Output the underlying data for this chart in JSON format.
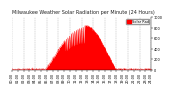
{
  "title": "Milwaukee Weather Solar Radiation per Minute (24 Hours)",
  "bg_color": "#ffffff",
  "plot_bg_color": "#ffffff",
  "line_color": "#ff0000",
  "fill_color": "#ff0000",
  "legend_label": "Solar Rad",
  "legend_color": "#ff0000",
  "grid_color": "#aaaaaa",
  "num_points": 1440,
  "peak_minute": 750,
  "peak_value": 850,
  "sunrise_minute": 340,
  "sunset_minute": 1080,
  "ylim": [
    0,
    1000
  ],
  "xlim": [
    0,
    1440
  ],
  "title_fontsize": 3.5,
  "tick_fontsize": 2.5
}
